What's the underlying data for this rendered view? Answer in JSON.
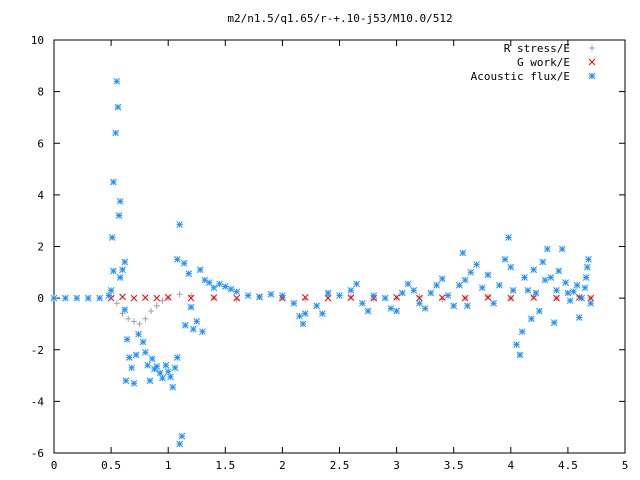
{
  "chart_data": {
    "type": "scatter",
    "title": "m2/n1.5/q1.65/r-+.10-j53/M10.0/512",
    "xlabel": "",
    "ylabel": "",
    "xlim": [
      0,
      5
    ],
    "ylim": [
      -6,
      10
    ],
    "x_ticks": [
      0,
      0.5,
      1,
      1.5,
      2,
      2.5,
      3,
      3.5,
      4,
      4.5,
      5
    ],
    "x_tick_labels": [
      "0",
      "0.5",
      "1",
      "1.5",
      "2",
      "2.5",
      "3",
      "3.5",
      "4",
      "4.5",
      "5"
    ],
    "y_ticks": [
      -6,
      -4,
      -2,
      0,
      2,
      4,
      6,
      8,
      10
    ],
    "y_tick_labels": [
      "-6",
      "-4",
      "-2",
      "0",
      "2",
      "4",
      "6",
      "8",
      "10"
    ],
    "grid": false,
    "legend_position": "top-right",
    "series": [
      {
        "name": "R stress/E",
        "marker": "plus",
        "color": "#a0a0a0",
        "points": [
          [
            0.5,
            0.05
          ],
          [
            0.55,
            -0.2
          ],
          [
            0.6,
            -0.6
          ],
          [
            0.65,
            -0.8
          ],
          [
            0.7,
            -0.9
          ],
          [
            0.75,
            -1.0
          ],
          [
            0.8,
            -0.8
          ],
          [
            0.85,
            -0.5
          ],
          [
            0.9,
            -0.3
          ],
          [
            0.95,
            -0.1
          ],
          [
            1.0,
            0.0
          ],
          [
            1.1,
            0.15
          ],
          [
            1.2,
            0.1
          ],
          [
            1.4,
            0.0
          ],
          [
            1.6,
            -0.05
          ],
          [
            1.8,
            0.05
          ],
          [
            2.0,
            0.0
          ],
          [
            2.2,
            -0.05
          ],
          [
            2.4,
            0.1
          ],
          [
            2.6,
            0.05
          ],
          [
            2.8,
            -0.05
          ],
          [
            3.0,
            0.0
          ],
          [
            3.2,
            0.05
          ],
          [
            3.4,
            -0.05
          ],
          [
            3.6,
            0.0
          ],
          [
            3.8,
            0.05
          ],
          [
            4.0,
            0.0
          ],
          [
            4.2,
            0.05
          ],
          [
            4.4,
            0.0
          ],
          [
            4.6,
            0.05
          ],
          [
            4.7,
            0.0
          ]
        ]
      },
      {
        "name": "G work/E",
        "marker": "cross",
        "color": "#ff0000",
        "points": [
          [
            0.5,
            0.0
          ],
          [
            0.6,
            0.05
          ],
          [
            0.7,
            0.0
          ],
          [
            0.8,
            0.02
          ],
          [
            0.9,
            0.0
          ],
          [
            1.0,
            0.03
          ],
          [
            1.2,
            0.0
          ],
          [
            1.4,
            0.02
          ],
          [
            1.6,
            0.0
          ],
          [
            1.8,
            0.05
          ],
          [
            2.0,
            0.0
          ],
          [
            2.2,
            0.03
          ],
          [
            2.4,
            0.0
          ],
          [
            2.6,
            0.02
          ],
          [
            2.8,
            0.0
          ],
          [
            3.0,
            0.03
          ],
          [
            3.2,
            0.0
          ],
          [
            3.4,
            0.02
          ],
          [
            3.6,
            0.0
          ],
          [
            3.8,
            0.03
          ],
          [
            4.0,
            0.0
          ],
          [
            4.2,
            0.02
          ],
          [
            4.4,
            0.0
          ],
          [
            4.6,
            0.03
          ],
          [
            4.7,
            0.0
          ]
        ]
      },
      {
        "name": "Acoustic flux/E",
        "marker": "star",
        "color": "#1e90ff",
        "points": [
          [
            0.0,
            0.0
          ],
          [
            0.1,
            0.0
          ],
          [
            0.2,
            0.0
          ],
          [
            0.3,
            0.0
          ],
          [
            0.4,
            0.0
          ],
          [
            0.48,
            0.1
          ],
          [
            0.5,
            0.3
          ],
          [
            0.51,
            2.35
          ],
          [
            0.52,
            4.5
          ],
          [
            0.54,
            6.4
          ],
          [
            0.55,
            8.4
          ],
          [
            0.56,
            7.4
          ],
          [
            0.57,
            3.2
          ],
          [
            0.58,
            3.75
          ],
          [
            0.52,
            1.05
          ],
          [
            0.6,
            1.1
          ],
          [
            0.62,
            1.4
          ],
          [
            0.58,
            0.8
          ],
          [
            0.62,
            -0.45
          ],
          [
            0.64,
            -1.6
          ],
          [
            0.66,
            -2.3
          ],
          [
            0.63,
            -3.2
          ],
          [
            0.7,
            -3.3
          ],
          [
            0.68,
            -2.7
          ],
          [
            0.72,
            -2.2
          ],
          [
            0.74,
            -1.4
          ],
          [
            0.78,
            -1.7
          ],
          [
            0.8,
            -2.1
          ],
          [
            0.82,
            -2.6
          ],
          [
            0.84,
            -3.2
          ],
          [
            0.86,
            -2.35
          ],
          [
            0.88,
            -2.75
          ],
          [
            0.9,
            -2.65
          ],
          [
            0.93,
            -2.9
          ],
          [
            0.95,
            -3.1
          ],
          [
            0.98,
            -2.6
          ],
          [
            1.0,
            -2.85
          ],
          [
            1.02,
            -3.05
          ],
          [
            1.04,
            -3.45
          ],
          [
            1.06,
            -2.7
          ],
          [
            1.08,
            -2.3
          ],
          [
            1.1,
            -5.65
          ],
          [
            1.12,
            -5.35
          ],
          [
            1.08,
            1.5
          ],
          [
            1.1,
            2.85
          ],
          [
            1.14,
            1.35
          ],
          [
            1.18,
            0.95
          ],
          [
            1.2,
            -0.35
          ],
          [
            1.15,
            -1.05
          ],
          [
            1.22,
            -1.2
          ],
          [
            1.25,
            -0.9
          ],
          [
            1.3,
            -1.3
          ],
          [
            1.28,
            1.1
          ],
          [
            1.32,
            0.7
          ],
          [
            1.36,
            0.6
          ],
          [
            1.4,
            0.4
          ],
          [
            1.45,
            0.55
          ],
          [
            1.5,
            0.45
          ],
          [
            1.55,
            0.35
          ],
          [
            1.6,
            0.25
          ],
          [
            1.7,
            0.1
          ],
          [
            1.8,
            0.05
          ],
          [
            1.9,
            0.15
          ],
          [
            2.0,
            0.1
          ],
          [
            2.1,
            -0.2
          ],
          [
            2.15,
            -0.7
          ],
          [
            2.18,
            -1.0
          ],
          [
            2.2,
            -0.6
          ],
          [
            2.3,
            -0.3
          ],
          [
            2.35,
            -0.6
          ],
          [
            2.4,
            0.2
          ],
          [
            2.5,
            0.1
          ],
          [
            2.6,
            0.3
          ],
          [
            2.65,
            0.55
          ],
          [
            2.7,
            -0.2
          ],
          [
            2.75,
            -0.5
          ],
          [
            2.8,
            0.1
          ],
          [
            2.9,
            0.0
          ],
          [
            2.95,
            -0.4
          ],
          [
            3.0,
            -0.5
          ],
          [
            3.05,
            0.2
          ],
          [
            3.1,
            0.55
          ],
          [
            3.15,
            0.3
          ],
          [
            3.2,
            -0.2
          ],
          [
            3.25,
            -0.4
          ],
          [
            3.3,
            0.2
          ],
          [
            3.35,
            0.5
          ],
          [
            3.4,
            0.75
          ],
          [
            3.45,
            0.1
          ],
          [
            3.5,
            -0.3
          ],
          [
            3.55,
            0.5
          ],
          [
            3.58,
            1.75
          ],
          [
            3.6,
            0.7
          ],
          [
            3.62,
            -0.3
          ],
          [
            3.65,
            1.0
          ],
          [
            3.7,
            1.3
          ],
          [
            3.75,
            0.4
          ],
          [
            3.8,
            0.9
          ],
          [
            3.85,
            -0.2
          ],
          [
            3.9,
            0.5
          ],
          [
            3.95,
            1.5
          ],
          [
            3.98,
            2.35
          ],
          [
            4.0,
            1.2
          ],
          [
            4.02,
            0.3
          ],
          [
            4.05,
            -1.8
          ],
          [
            4.08,
            -2.2
          ],
          [
            4.1,
            -1.3
          ],
          [
            4.12,
            0.8
          ],
          [
            4.15,
            0.3
          ],
          [
            4.18,
            -0.8
          ],
          [
            4.2,
            1.1
          ],
          [
            4.22,
            0.2
          ],
          [
            4.25,
            -0.5
          ],
          [
            4.28,
            1.4
          ],
          [
            4.3,
            0.7
          ],
          [
            4.32,
            1.9
          ],
          [
            4.35,
            0.8
          ],
          [
            4.38,
            -0.95
          ],
          [
            4.4,
            0.3
          ],
          [
            4.42,
            1.05
          ],
          [
            4.45,
            1.9
          ],
          [
            4.48,
            0.6
          ],
          [
            4.5,
            0.2
          ],
          [
            4.52,
            -0.1
          ],
          [
            4.55,
            0.25
          ],
          [
            4.58,
            0.5
          ],
          [
            4.6,
            -0.75
          ],
          [
            4.62,
            0.0
          ],
          [
            4.65,
            0.4
          ],
          [
            4.66,
            0.8
          ],
          [
            4.67,
            1.2
          ],
          [
            4.68,
            1.5
          ],
          [
            4.7,
            -0.2
          ]
        ]
      }
    ]
  }
}
